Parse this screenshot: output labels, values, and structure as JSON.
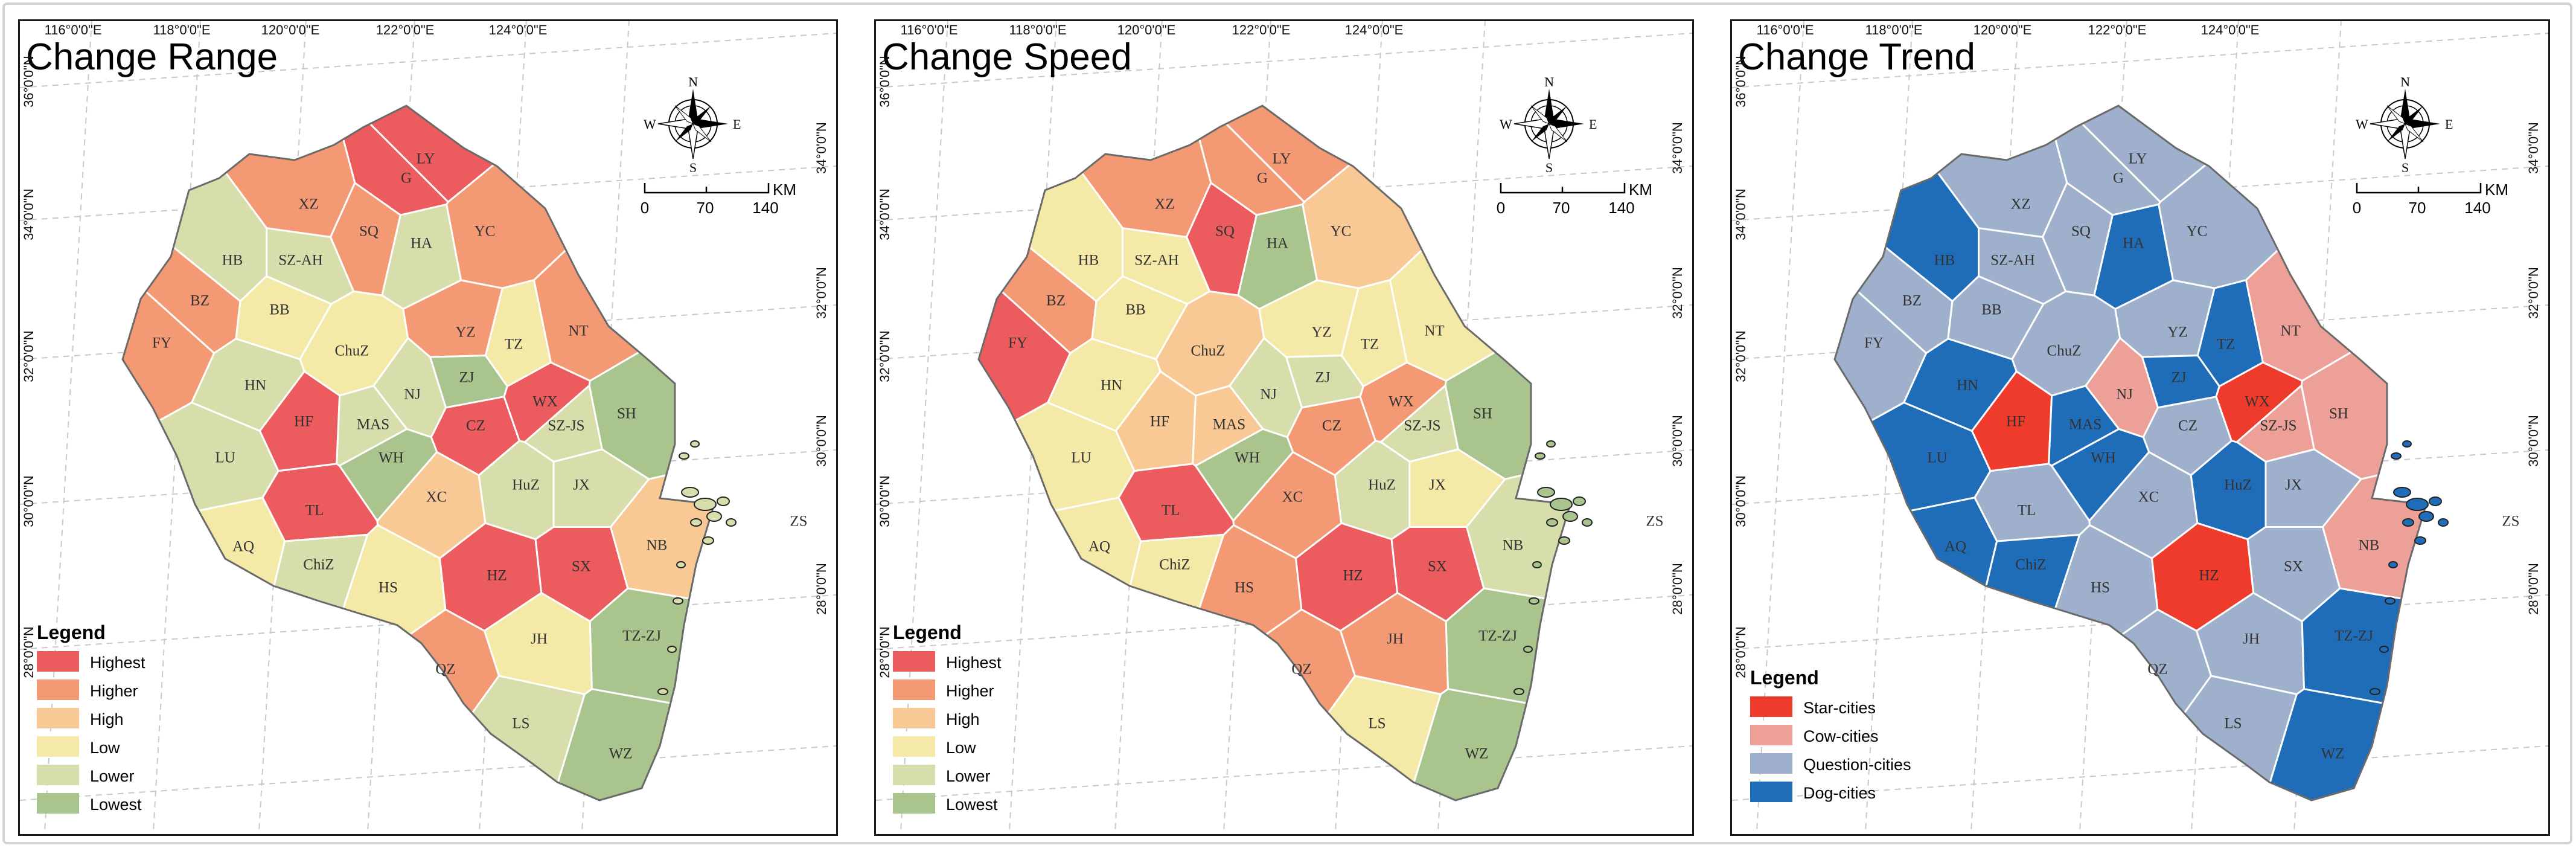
{
  "lon_labels": [
    "116°0'0\"E",
    "118°0'0\"E",
    "120°0'0\"E",
    "122°0'0\"E",
    "124°0'0\"E"
  ],
  "lat_labels_left": [
    "36°0'0\"N",
    "34°0'0\"N",
    "32°0'0\"N",
    "30°0'0\"N",
    "28°0'0\"N"
  ],
  "lat_labels_right": [
    "34°0'0\"N",
    "32°0'0\"N",
    "30°0'0\"N",
    "28°0'0\"N"
  ],
  "compass": {
    "n": "N",
    "s": "S",
    "e": "E",
    "w": "W"
  },
  "scale": {
    "unit": "KM",
    "ticks": [
      "0",
      "70",
      "140"
    ]
  },
  "extra_labels": {
    "zs": "ZS"
  },
  "level_colors": {
    "Highest": "#ec5b5d",
    "Higher": "#f39a74",
    "High": "#f8c995",
    "Low": "#f4e9a7",
    "Lower": "#d7deab",
    "Lowest": "#a9c48d"
  },
  "trend_colors": {
    "Star-cities": "#ef3b2c",
    "Cow-cities": "#eca097",
    "Question-cities": "#9eb0cb",
    "Dog-cities": "#1f6db8"
  },
  "panels": [
    {
      "title": "Change Range",
      "legend_title": "Legend",
      "legend": [
        "Highest",
        "Higher",
        "High",
        "Low",
        "Lower",
        "Lowest"
      ],
      "values": {
        "LY": "Highest",
        "G": "Highest",
        "XZ": "Higher",
        "SQ": "Higher",
        "HA": "Lower",
        "YC": "Higher",
        "HB": "Lower",
        "SZ-AH": "Lower",
        "BZ": "Higher",
        "FY": "Higher",
        "BB": "Low",
        "ChuZ": "Low",
        "YZ": "Higher",
        "TZ": "Low",
        "NT": "Higher",
        "HN": "Lower",
        "NJ": "Lower",
        "ZJ": "Lowest",
        "CZ": "Highest",
        "WX": "Highest",
        "SZ-JS": "Lower",
        "SH": "Lowest",
        "HF": "Highest",
        "MAS": "Lower",
        "WH": "Lowest",
        "LU": "Lower",
        "TL": "Highest",
        "XC": "High",
        "HuZ": "Lower",
        "JX": "Lower",
        "AQ": "Low",
        "ChiZ": "Lower",
        "HS": "Low",
        "HZ": "Highest",
        "SX": "Highest",
        "NB": "High",
        "JH": "Low",
        "QZ": "Higher",
        "TZ-ZJ": "Lowest",
        "LS": "Lower",
        "WZ": "Lowest",
        "ZS": "Lower"
      }
    },
    {
      "title": "Change Speed",
      "legend_title": "Legend",
      "legend": [
        "Highest",
        "Higher",
        "High",
        "Low",
        "Lower",
        "Lowest"
      ],
      "values": {
        "LY": "Higher",
        "G": "Higher",
        "XZ": "Higher",
        "SQ": "Highest",
        "HA": "Lowest",
        "YC": "High",
        "HB": "Low",
        "SZ-AH": "Low",
        "BZ": "Higher",
        "FY": "Highest",
        "BB": "Low",
        "ChuZ": "High",
        "YZ": "Low",
        "TZ": "Low",
        "NT": "Low",
        "HN": "Low",
        "NJ": "Lower",
        "ZJ": "Lower",
        "CZ": "Higher",
        "WX": "Higher",
        "SZ-JS": "Lower",
        "SH": "Lowest",
        "HF": "High",
        "MAS": "High",
        "WH": "Lowest",
        "LU": "Low",
        "TL": "Highest",
        "XC": "Higher",
        "HuZ": "Lower",
        "JX": "Low",
        "AQ": "Low",
        "ChiZ": "Low",
        "HS": "Higher",
        "HZ": "Highest",
        "SX": "Highest",
        "NB": "Lower",
        "JH": "Higher",
        "QZ": "Higher",
        "TZ-ZJ": "Lowest",
        "LS": "Low",
        "WZ": "Lowest",
        "ZS": "Lowest"
      }
    },
    {
      "title": "Change Trend",
      "legend_title": "Legend",
      "legend": [
        "Star-cities",
        "Cow-cities",
        "Question-cities",
        "Dog-cities"
      ],
      "values": {
        "LY": "Question-cities",
        "G": "Question-cities",
        "XZ": "Question-cities",
        "SQ": "Question-cities",
        "HA": "Dog-cities",
        "YC": "Question-cities",
        "HB": "Dog-cities",
        "SZ-AH": "Question-cities",
        "BZ": "Question-cities",
        "FY": "Question-cities",
        "BB": "Question-cities",
        "ChuZ": "Question-cities",
        "YZ": "Question-cities",
        "TZ": "Dog-cities",
        "NT": "Cow-cities",
        "HN": "Dog-cities",
        "NJ": "Cow-cities",
        "ZJ": "Dog-cities",
        "CZ": "Question-cities",
        "WX": "Star-cities",
        "SZ-JS": "Cow-cities",
        "SH": "Cow-cities",
        "HF": "Star-cities",
        "MAS": "Dog-cities",
        "WH": "Dog-cities",
        "LU": "Dog-cities",
        "TL": "Question-cities",
        "XC": "Question-cities",
        "HuZ": "Dog-cities",
        "JX": "Question-cities",
        "AQ": "Dog-cities",
        "ChiZ": "Dog-cities",
        "HS": "Question-cities",
        "HZ": "Star-cities",
        "SX": "Question-cities",
        "NB": "Cow-cities",
        "JH": "Question-cities",
        "QZ": "Question-cities",
        "TZ-ZJ": "Dog-cities",
        "LS": "Question-cities",
        "WZ": "Dog-cities",
        "ZS": "Dog-cities"
      }
    }
  ]
}
